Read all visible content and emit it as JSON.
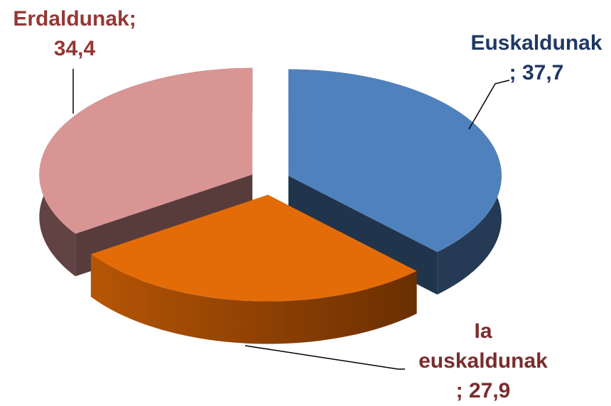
{
  "chart_data": {
    "type": "pie3d",
    "categories": [
      "Euskaldunak",
      "Ia euskaldunak",
      "Erdaldunak"
    ],
    "values": [
      37.7,
      27.9,
      34.4
    ],
    "value_labels": [
      "37,7",
      "27,9",
      "34,4"
    ],
    "label_separator": ";",
    "colors": [
      "#4f81bd",
      "#e36c09",
      "#d99594"
    ],
    "label_colors": [
      "#1f3864",
      "#7b2c2c",
      "#953735"
    ],
    "exploded": true
  }
}
